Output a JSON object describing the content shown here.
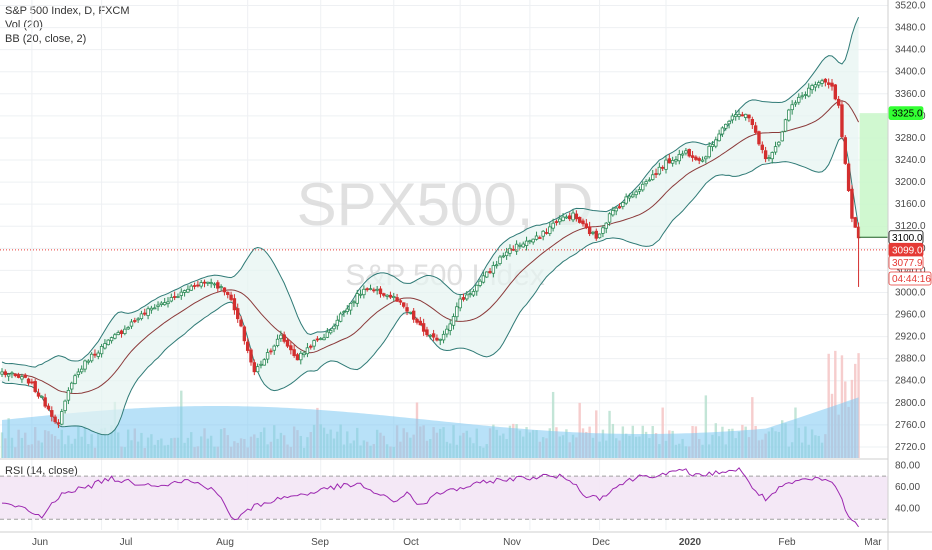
{
  "legend": {
    "title": "S&P 500 Index, D, FXCM",
    "volume": "Vol (20)",
    "bb": "BB (20, close, 2)",
    "rsi": "RSI (14, close)"
  },
  "watermark": {
    "symbol": "SPX500, D",
    "name": "S&P 500 Index"
  },
  "chart_data": {
    "type": "candlestick",
    "title": "S&P 500 Index, D, FXCM",
    "price_axis": {
      "ticks": [
        "3520.0",
        "3480.0",
        "3440.0",
        "3400.0",
        "3360.0",
        "3320.0",
        "3280.0",
        "3240.0",
        "3200.0",
        "3160.0",
        "3120.0",
        "3080.0",
        "3040.0",
        "3000.0",
        "2960.0",
        "2920.0",
        "2880.0",
        "2840.0",
        "2800.0",
        "2760.0",
        "2720.0"
      ],
      "range": [
        2700,
        3530
      ]
    },
    "rsi_axis": {
      "ticks": [
        "80.00",
        "60.00",
        "40.00"
      ],
      "range": [
        20,
        85
      ],
      "bands": [
        30,
        70
      ]
    },
    "x_labels": [
      {
        "text": "Jun",
        "bold": false
      },
      {
        "text": "Jul",
        "bold": false
      },
      {
        "text": "Aug",
        "bold": false
      },
      {
        "text": "Sep",
        "bold": false
      },
      {
        "text": "Oct",
        "bold": false
      },
      {
        "text": "Nov",
        "bold": false
      },
      {
        "text": "Dec",
        "bold": false
      },
      {
        "text": "2020",
        "bold": true
      },
      {
        "text": "Feb",
        "bold": false
      },
      {
        "text": "Mar",
        "bold": false
      }
    ],
    "price_tags": [
      {
        "value": "3325.0",
        "bg": "#33ff33",
        "fg": "#000000"
      },
      {
        "value": "3100.0",
        "bg": "#ffffff",
        "fg": "#000000"
      },
      {
        "value": "3099.0",
        "bg": "#e53935",
        "fg": "#ffffff"
      },
      {
        "value": "3077.9",
        "bg": "#ffffff",
        "fg": "#e53935"
      },
      {
        "value": "04:44:16",
        "bg": "#ffffff",
        "fg": "#e53935"
      }
    ],
    "projection": {
      "top": 3325,
      "bottom": 3100
    },
    "current_price": 3099,
    "colors": {
      "up": "#2e8b57",
      "down": "#d32f2f",
      "band": "#2f7a76",
      "basis": "#8b3a3a",
      "rsi": "#9c27b0",
      "volume": "#7ec8f2"
    },
    "anchors": [
      {
        "t": 0,
        "p": 2855
      },
      {
        "t": 8,
        "p": 2840
      },
      {
        "t": 14,
        "p": 2790
      },
      {
        "t": 17,
        "p": 2760
      },
      {
        "t": 21,
        "p": 2840
      },
      {
        "t": 26,
        "p": 2880
      },
      {
        "t": 32,
        "p": 2910
      },
      {
        "t": 40,
        "p": 2950
      },
      {
        "t": 46,
        "p": 2975
      },
      {
        "t": 52,
        "p": 2990
      },
      {
        "t": 58,
        "p": 3015
      },
      {
        "t": 63,
        "p": 3020
      },
      {
        "t": 68,
        "p": 3000
      },
      {
        "t": 72,
        "p": 2935
      },
      {
        "t": 76,
        "p": 2855
      },
      {
        "t": 80,
        "p": 2890
      },
      {
        "t": 84,
        "p": 2920
      },
      {
        "t": 89,
        "p": 2880
      },
      {
        "t": 93,
        "p": 2905
      },
      {
        "t": 98,
        "p": 2925
      },
      {
        "t": 104,
        "p": 2975
      },
      {
        "t": 109,
        "p": 3005
      },
      {
        "t": 114,
        "p": 3000
      },
      {
        "t": 118,
        "p": 2990
      },
      {
        "t": 123,
        "p": 2960
      },
      {
        "t": 127,
        "p": 2930
      },
      {
        "t": 131,
        "p": 2910
      },
      {
        "t": 134,
        "p": 2935
      },
      {
        "t": 138,
        "p": 2985
      },
      {
        "t": 142,
        "p": 3005
      },
      {
        "t": 147,
        "p": 3040
      },
      {
        "t": 152,
        "p": 3075
      },
      {
        "t": 157,
        "p": 3090
      },
      {
        "t": 162,
        "p": 3100
      },
      {
        "t": 167,
        "p": 3130
      },
      {
        "t": 172,
        "p": 3140
      },
      {
        "t": 176,
        "p": 3115
      },
      {
        "t": 179,
        "p": 3100
      },
      {
        "t": 183,
        "p": 3140
      },
      {
        "t": 188,
        "p": 3170
      },
      {
        "t": 194,
        "p": 3200
      },
      {
        "t": 200,
        "p": 3235
      },
      {
        "t": 206,
        "p": 3255
      },
      {
        "t": 211,
        "p": 3240
      },
      {
        "t": 217,
        "p": 3300
      },
      {
        "t": 221,
        "p": 3320
      },
      {
        "t": 224,
        "p": 3325
      },
      {
        "t": 227,
        "p": 3290
      },
      {
        "t": 230,
        "p": 3240
      },
      {
        "t": 234,
        "p": 3275
      },
      {
        "t": 237,
        "p": 3330
      },
      {
        "t": 240,
        "p": 3350
      },
      {
        "t": 244,
        "p": 3375
      },
      {
        "t": 248,
        "p": 3380
      },
      {
        "t": 250,
        "p": 3370
      },
      {
        "t": 252,
        "p": 3335
      },
      {
        "t": 254,
        "p": 3230
      },
      {
        "t": 256,
        "p": 3130
      },
      {
        "t": 258,
        "p": 3099
      }
    ],
    "rsi_anchors": [
      {
        "t": 0,
        "v": 45
      },
      {
        "t": 6,
        "v": 40
      },
      {
        "t": 12,
        "v": 32
      },
      {
        "t": 18,
        "v": 55
      },
      {
        "t": 26,
        "v": 60
      },
      {
        "t": 32,
        "v": 68
      },
      {
        "t": 40,
        "v": 64
      },
      {
        "t": 48,
        "v": 62
      },
      {
        "t": 56,
        "v": 66
      },
      {
        "t": 64,
        "v": 58
      },
      {
        "t": 68,
        "v": 38
      },
      {
        "t": 70,
        "v": 29
      },
      {
        "t": 76,
        "v": 42
      },
      {
        "t": 82,
        "v": 48
      },
      {
        "t": 88,
        "v": 52
      },
      {
        "t": 94,
        "v": 55
      },
      {
        "t": 100,
        "v": 60
      },
      {
        "t": 108,
        "v": 62
      },
      {
        "t": 112,
        "v": 55
      },
      {
        "t": 118,
        "v": 46
      },
      {
        "t": 122,
        "v": 55
      },
      {
        "t": 126,
        "v": 42
      },
      {
        "t": 132,
        "v": 55
      },
      {
        "t": 140,
        "v": 60
      },
      {
        "t": 148,
        "v": 66
      },
      {
        "t": 156,
        "v": 68
      },
      {
        "t": 164,
        "v": 70
      },
      {
        "t": 170,
        "v": 69
      },
      {
        "t": 176,
        "v": 52
      },
      {
        "t": 180,
        "v": 50
      },
      {
        "t": 186,
        "v": 62
      },
      {
        "t": 192,
        "v": 70
      },
      {
        "t": 200,
        "v": 72
      },
      {
        "t": 206,
        "v": 75
      },
      {
        "t": 210,
        "v": 70
      },
      {
        "t": 216,
        "v": 74
      },
      {
        "t": 222,
        "v": 76
      },
      {
        "t": 226,
        "v": 60
      },
      {
        "t": 230,
        "v": 48
      },
      {
        "t": 234,
        "v": 58
      },
      {
        "t": 240,
        "v": 66
      },
      {
        "t": 246,
        "v": 67
      },
      {
        "t": 250,
        "v": 65
      },
      {
        "t": 253,
        "v": 48
      },
      {
        "t": 255,
        "v": 32
      },
      {
        "t": 258,
        "v": 23
      }
    ]
  }
}
